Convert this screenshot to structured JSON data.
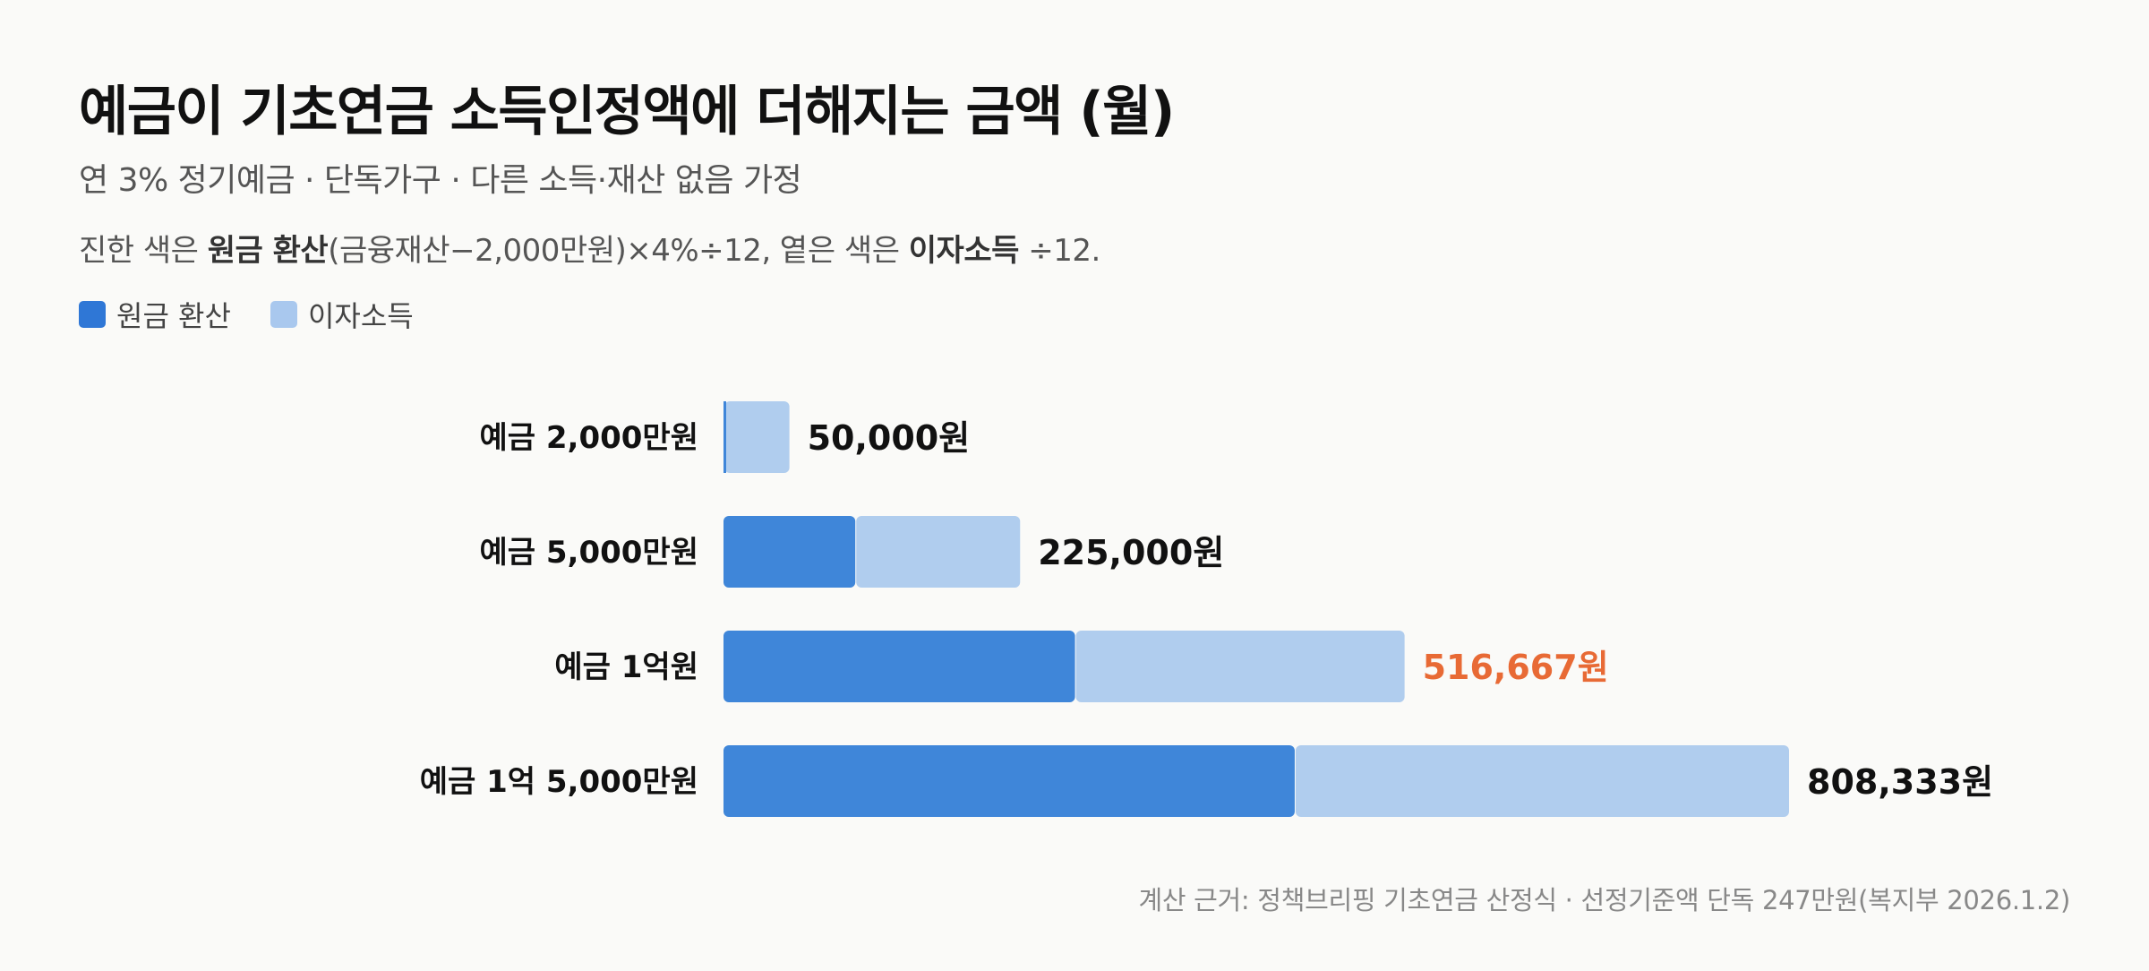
{
  "chart_data": {
    "type": "bar",
    "orientation": "horizontal",
    "stacked": true,
    "title": "예금이 기초연금 소득인정액에 더해지는 금액 (월)",
    "subtitle": "연 3% 정기예금 · 단독가구 · 다른 소득·재산 없음 가정",
    "note": {
      "p1": "진한 색은 ",
      "b1": "원금 환산",
      "p2": "(금융재산−2,000만원)×4%÷12, 옅은 색은 ",
      "b2": "이자소득",
      "p3": " ÷12."
    },
    "legend_placement": "top-left",
    "categories": [
      "예금 2,000만원",
      "예금 5,000만원",
      "예금 1억원",
      "예금 1억 5,000만원"
    ],
    "series": [
      {
        "name": "원금 환산",
        "color": "#3f86d9",
        "values": [
          0,
          100000,
          266667,
          433333
        ]
      },
      {
        "name": "이자소득",
        "color": "#b0cdee",
        "values": [
          50000,
          125000,
          250000,
          375000
        ]
      }
    ],
    "totals": [
      50000,
      225000,
      516667,
      808333
    ],
    "total_labels": [
      "50,000원",
      "225,000원",
      "516,667원",
      "808,333원"
    ],
    "highlight_index": 2,
    "highlight_color": "#e86a35",
    "legend_colors": {
      "principal": "#2f77d6",
      "interest": "#a9c8ee"
    },
    "footer": "계산 근거: 정책브리핑 기초연금 산정식 · 선정기준액 단독 247만원(복지부 2026.1.2)",
    "grid": false
  }
}
